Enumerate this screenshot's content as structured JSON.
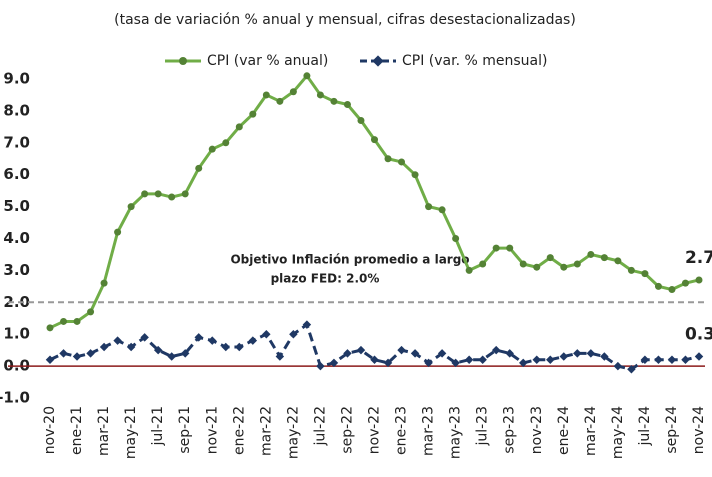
{
  "chart_data": {
    "type": "line",
    "subtitle": "(tasa de variación % anual y mensual, cifras desestacionalizadas)",
    "categories": [
      "nov-20",
      null,
      "ene-21",
      null,
      "mar-21",
      null,
      "may-21",
      null,
      "jul-21",
      null,
      "sep-21",
      null,
      "nov-21",
      null,
      "ene-22",
      null,
      "mar-22",
      null,
      "may-22",
      null,
      "jul-22",
      null,
      "sep-22",
      null,
      "nov-22",
      null,
      "ene-23",
      null,
      "mar-23",
      null,
      "may-23",
      null,
      "jul-23",
      null,
      "sep-23",
      null,
      "nov-23",
      null,
      "ene-24",
      null,
      "mar-24",
      null,
      "may-24",
      null,
      "jul-24",
      null,
      "sep-24",
      null,
      "nov-24"
    ],
    "series": [
      {
        "name": "CPI (var % anual)",
        "color": "#70ad47",
        "marker_color": "#548235",
        "values": [
          1.2,
          1.4,
          1.4,
          1.7,
          2.6,
          4.2,
          5.0,
          5.4,
          5.4,
          5.3,
          5.4,
          6.2,
          6.8,
          7.0,
          7.5,
          7.9,
          8.5,
          8.3,
          8.6,
          9.1,
          8.5,
          8.3,
          8.2,
          7.7,
          7.1,
          6.5,
          6.4,
          6.0,
          5.0,
          4.9,
          4.0,
          3.0,
          3.2,
          3.7,
          3.7,
          3.2,
          3.1,
          3.4,
          3.1,
          3.2,
          3.5,
          3.4,
          3.3,
          3.0,
          2.9,
          2.5,
          2.4,
          2.6,
          2.7
        ],
        "value_labels": [
          null,
          null,
          null,
          null,
          null,
          null,
          null,
          null,
          null,
          null,
          null,
          null,
          null,
          null,
          null,
          null,
          null,
          null,
          null,
          null,
          null,
          null,
          null,
          null,
          null,
          null,
          null,
          null,
          null,
          null,
          null,
          null,
          null,
          null,
          null,
          null,
          null,
          null,
          null,
          null,
          null,
          null,
          null,
          null,
          null,
          null,
          null,
          null,
          "2.7"
        ]
      },
      {
        "name": "CPI (var. % mensual)",
        "color": "#1f3864",
        "dashed": true,
        "values": [
          0.2,
          0.4,
          0.3,
          0.4,
          0.6,
          0.8,
          0.6,
          0.9,
          0.5,
          0.3,
          0.4,
          0.9,
          0.8,
          0.6,
          0.6,
          0.8,
          1.0,
          0.3,
          1.0,
          1.3,
          0.0,
          0.1,
          0.4,
          0.5,
          0.2,
          0.1,
          0.5,
          0.4,
          0.1,
          0.4,
          0.1,
          0.2,
          0.2,
          0.5,
          0.4,
          0.1,
          0.2,
          0.2,
          0.3,
          0.4,
          0.4,
          0.3,
          0.0,
          -0.1,
          0.2,
          0.2,
          0.2,
          0.2,
          0.3
        ],
        "value_labels": [
          null,
          null,
          null,
          null,
          null,
          null,
          null,
          null,
          null,
          null,
          null,
          null,
          null,
          null,
          null,
          null,
          null,
          null,
          null,
          null,
          null,
          null,
          null,
          null,
          null,
          null,
          null,
          null,
          null,
          null,
          null,
          null,
          null,
          null,
          null,
          null,
          null,
          null,
          null,
          null,
          null,
          null,
          null,
          null,
          null,
          null,
          null,
          null,
          "0.3"
        ]
      }
    ],
    "ylim": [
      -1,
      9
    ],
    "yticks": [
      {
        "value": -1,
        "label": "-1.0"
      },
      {
        "value": 0,
        "label": "0.0"
      },
      {
        "value": 1,
        "label": "1.0"
      },
      {
        "value": 2,
        "label": "2.0"
      },
      {
        "value": 3,
        "label": "3.0"
      },
      {
        "value": 4,
        "label": "4.0"
      },
      {
        "value": 5,
        "label": "5.0"
      },
      {
        "value": 6,
        "label": "6.0"
      },
      {
        "value": 7,
        "label": "7.0"
      },
      {
        "value": 8,
        "label": "8.0"
      },
      {
        "value": 9,
        "label": "9.0"
      }
    ],
    "zero_line_color": "#8b1a1a",
    "reference_line": {
      "value": 2.0,
      "color": "#999999",
      "annotation": [
        "Objetivo Inflación promedio a largo",
        "plazo FED: 2.0%"
      ]
    },
    "legend": "top"
  }
}
